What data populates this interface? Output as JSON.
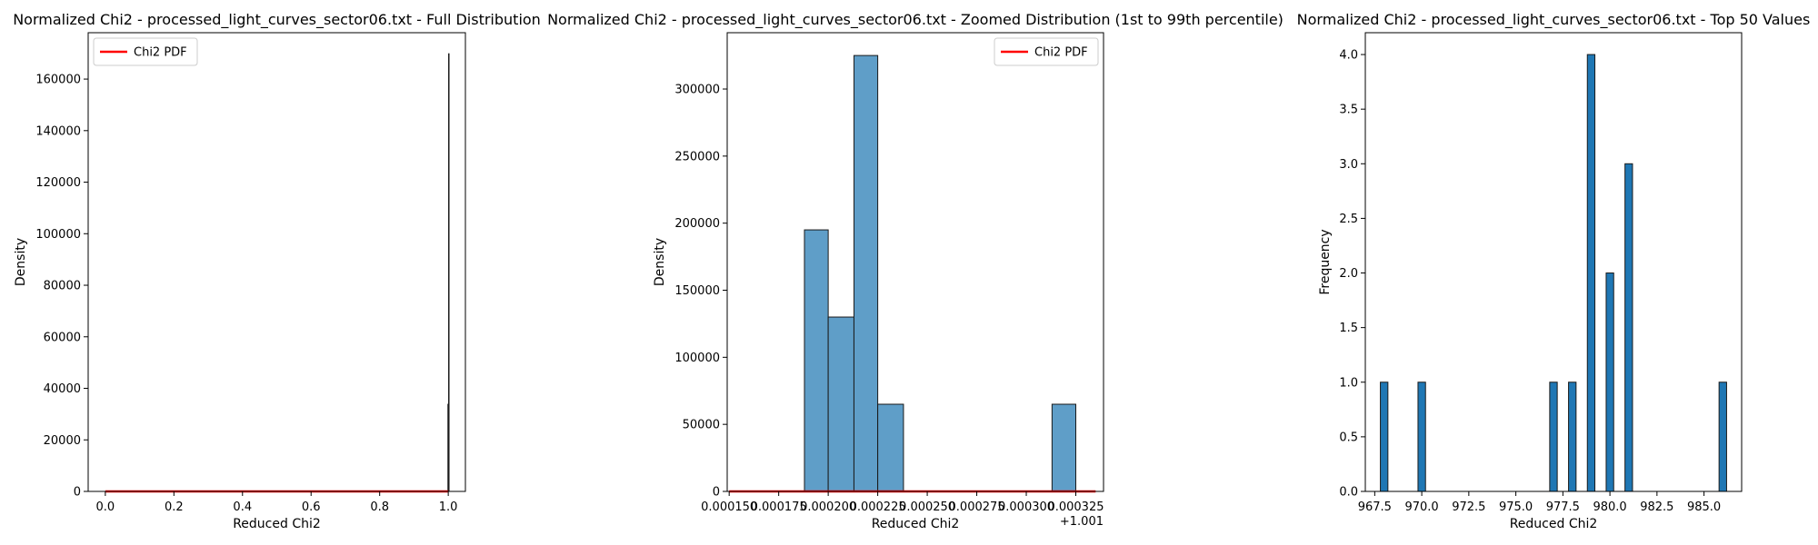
{
  "chart_data": [
    {
      "type": "bar",
      "title": "Normalized Chi2 - processed_light_curves_sector06.txt - Full Distribution",
      "xlabel": "Reduced Chi2",
      "ylabel": "Density",
      "xlim": [
        -0.05,
        1.05
      ],
      "ylim": [
        0,
        178000
      ],
      "xticks": [
        0.0,
        0.2,
        0.4,
        0.6,
        0.8,
        1.0
      ],
      "xtick_labels": [
        "0.0",
        "0.2",
        "0.4",
        "0.6",
        "0.8",
        "1.0"
      ],
      "yticks": [
        0,
        20000,
        40000,
        60000,
        80000,
        100000,
        120000,
        140000,
        160000
      ],
      "ytick_labels": [
        "0",
        "20000",
        "40000",
        "60000",
        "80000",
        "100000",
        "120000",
        "140000",
        "160000"
      ],
      "bars": [
        {
          "x": 0.999,
          "value": 34000
        },
        {
          "x": 1.001,
          "value": 170000
        }
      ],
      "pdf_line": {
        "x": [
          0.0,
          1.0
        ],
        "y": [
          0,
          0
        ],
        "color": "#ff0000"
      },
      "legend": {
        "entries": [
          "Chi2 PDF"
        ],
        "location": "upper-left"
      }
    },
    {
      "type": "bar",
      "title": "Normalized Chi2 - processed_light_curves_sector06.txt - Zoomed Distribution (1st to 99th percentile)",
      "xlabel": "Reduced Chi2",
      "ylabel": "Density",
      "x_offset_label": "+1.001",
      "xlim": [
        0.000149,
        0.000339
      ],
      "ylim": [
        0,
        342000
      ],
      "xticks": [
        0.00015,
        0.000175,
        0.0002,
        0.000225,
        0.00025,
        0.000275,
        0.0003,
        0.000325
      ],
      "xtick_labels": [
        "0.000150",
        "0.000175",
        "0.000200",
        "0.000225",
        "0.000250",
        "0.000275",
        "0.000300",
        "0.000325"
      ],
      "yticks": [
        0,
        50000,
        100000,
        150000,
        200000,
        250000,
        300000
      ],
      "ytick_labels": [
        "0",
        "50000",
        "100000",
        "150000",
        "200000",
        "250000",
        "300000"
      ],
      "bins": [
        {
          "x0": 0.000188,
          "x1": 0.0002,
          "value": 195000
        },
        {
          "x0": 0.0002,
          "x1": 0.000213,
          "value": 130000
        },
        {
          "x0": 0.000213,
          "x1": 0.000225,
          "value": 325000
        },
        {
          "x0": 0.000225,
          "x1": 0.000238,
          "value": 65000
        },
        {
          "x0": 0.000313,
          "x1": 0.000325,
          "value": 65000
        }
      ],
      "pdf_line": {
        "x": [
          0.00015,
          0.000335
        ],
        "y": [
          0,
          0
        ],
        "color": "#ff0000"
      },
      "legend": {
        "entries": [
          "Chi2 PDF"
        ],
        "location": "upper-right"
      }
    },
    {
      "type": "bar",
      "title": "Normalized Chi2 - processed_light_curves_sector06.txt - Top 50 Values",
      "xlabel": "Reduced Chi2",
      "ylabel": "Frequency",
      "xlim": [
        967.0,
        987.0
      ],
      "ylim": [
        0,
        4.2
      ],
      "xticks": [
        967.5,
        970.0,
        972.5,
        975.0,
        977.5,
        980.0,
        982.5,
        985.0
      ],
      "xtick_labels": [
        "967.5",
        "970.0",
        "972.5",
        "975.0",
        "977.5",
        "980.0",
        "982.5",
        "985.0"
      ],
      "yticks": [
        0.0,
        0.5,
        1.0,
        1.5,
        2.0,
        2.5,
        3.0,
        3.5,
        4.0
      ],
      "ytick_labels": [
        "0.0",
        "0.5",
        "1.0",
        "1.5",
        "2.0",
        "2.5",
        "3.0",
        "3.5",
        "4.0"
      ],
      "bins": [
        {
          "x0": 967.8,
          "x1": 968.2,
          "value": 1
        },
        {
          "x0": 969.8,
          "x1": 970.2,
          "value": 1
        },
        {
          "x0": 976.8,
          "x1": 977.2,
          "value": 1
        },
        {
          "x0": 977.8,
          "x1": 978.2,
          "value": 1
        },
        {
          "x0": 978.8,
          "x1": 979.2,
          "value": 4
        },
        {
          "x0": 979.8,
          "x1": 980.2,
          "value": 2
        },
        {
          "x0": 980.8,
          "x1": 981.2,
          "value": 3
        },
        {
          "x0": 985.8,
          "x1": 986.2,
          "value": 1
        }
      ],
      "bar_color": "#1f77b4"
    }
  ],
  "colors": {
    "hist_fill_zoom": "#5f9ec8",
    "hist_fill_top": "#1f77b4",
    "edge": "#1a1a1a",
    "pdf": "#ff0000"
  }
}
